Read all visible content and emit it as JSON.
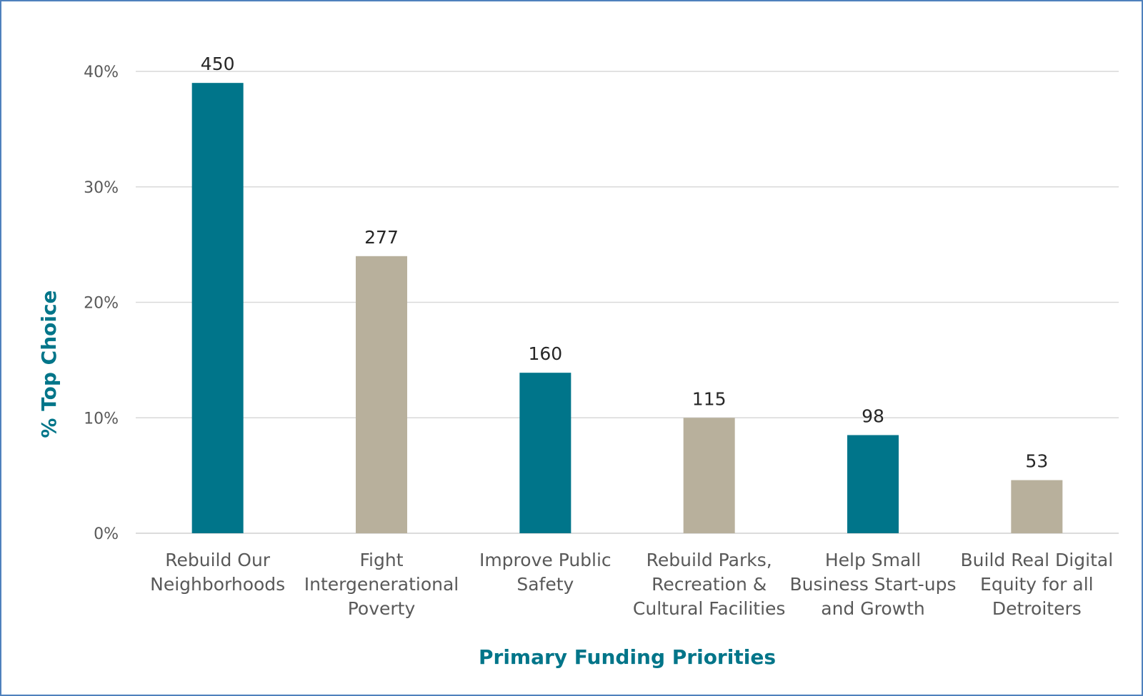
{
  "chart_data": {
    "type": "bar",
    "title": "",
    "xlabel": "Primary Funding Priorities",
    "ylabel": "% Top Choice",
    "ylim": [
      0,
      40
    ],
    "yticks": [
      0,
      10,
      20,
      30,
      40
    ],
    "ytick_labels": [
      "0%",
      "10%",
      "20%",
      "30%",
      "40%"
    ],
    "grid": true,
    "categories": [
      [
        "Rebuild Our",
        "Neighborhoods"
      ],
      [
        "Fight",
        "Intergenerational",
        "Poverty"
      ],
      [
        "Improve Public",
        "Safety"
      ],
      [
        "Rebuild Parks,",
        "Recreation &",
        "Cultural Facilities"
      ],
      [
        "Help Small",
        "Business Start-ups",
        "and Growth"
      ],
      [
        "Build Real Digital",
        "Equity for all",
        "Detroiters"
      ]
    ],
    "values": [
      39,
      24,
      13.9,
      10,
      8.5,
      4.6
    ],
    "data_labels": [
      "450",
      "277",
      "160",
      "115",
      "98",
      "53"
    ],
    "colors": [
      "#00758a",
      "#b8b09c",
      "#00758a",
      "#b8b09c",
      "#00758a",
      "#b8b09c"
    ]
  },
  "colors": {
    "axis_title": "#007589",
    "frame": "#4f81bd"
  }
}
